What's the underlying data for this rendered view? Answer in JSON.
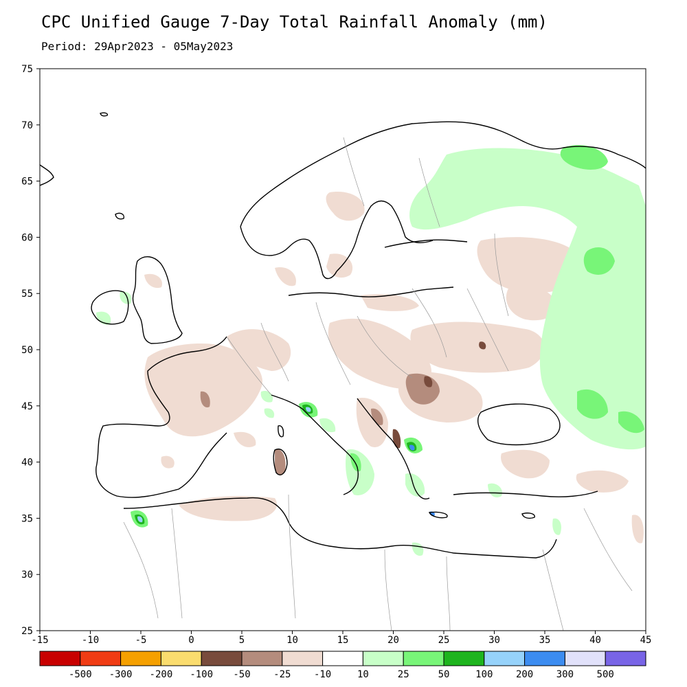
{
  "header": {
    "title": "CPC Unified Gauge 7-Day Total Rainfall Anomaly (mm)",
    "period": "Period: 29Apr2023 - 05May2023"
  },
  "map": {
    "region": "Europe, North Africa and the Mediterranean",
    "lon_range": [
      -15,
      45
    ],
    "lat_range": [
      25,
      75
    ],
    "x_ticks": [
      "-15",
      "-10",
      "-5",
      "0",
      "5",
      "10",
      "15",
      "20",
      "25",
      "30",
      "35",
      "40",
      "45"
    ],
    "y_ticks": [
      "25",
      "30",
      "35",
      "40",
      "45",
      "50",
      "55",
      "60",
      "65",
      "70",
      "75"
    ],
    "frame_color": "#000000",
    "background_color": "#ffffff"
  },
  "colorbar": {
    "colors": [
      "#c80000",
      "#f03c14",
      "#f5a000",
      "#fadc6e",
      "#784b3c",
      "#b48c7d",
      "#f0dcd2",
      "#ffffff",
      "#c8ffc8",
      "#78f578",
      "#1eb41e",
      "#96d2fa",
      "#3c8cf0",
      "#e1e1fa",
      "#7864e6"
    ],
    "labels": [
      "-500",
      "-300",
      "-200",
      "-100",
      "-50",
      "-25",
      "-10",
      "10",
      "25",
      "50",
      "100",
      "200",
      "300",
      "500"
    ]
  },
  "anomaly_legend": {
    "dry_light": "#f0dcd2",
    "dry_mid": "#b48c7d",
    "dry_strong": "#784b3c",
    "wet_light": "#c8ffc8",
    "wet_mid": "#78f578",
    "wet_strong": "#1eb41e",
    "wet_very": "#96d2fa",
    "wet_extreme": "#3c8cf0"
  }
}
